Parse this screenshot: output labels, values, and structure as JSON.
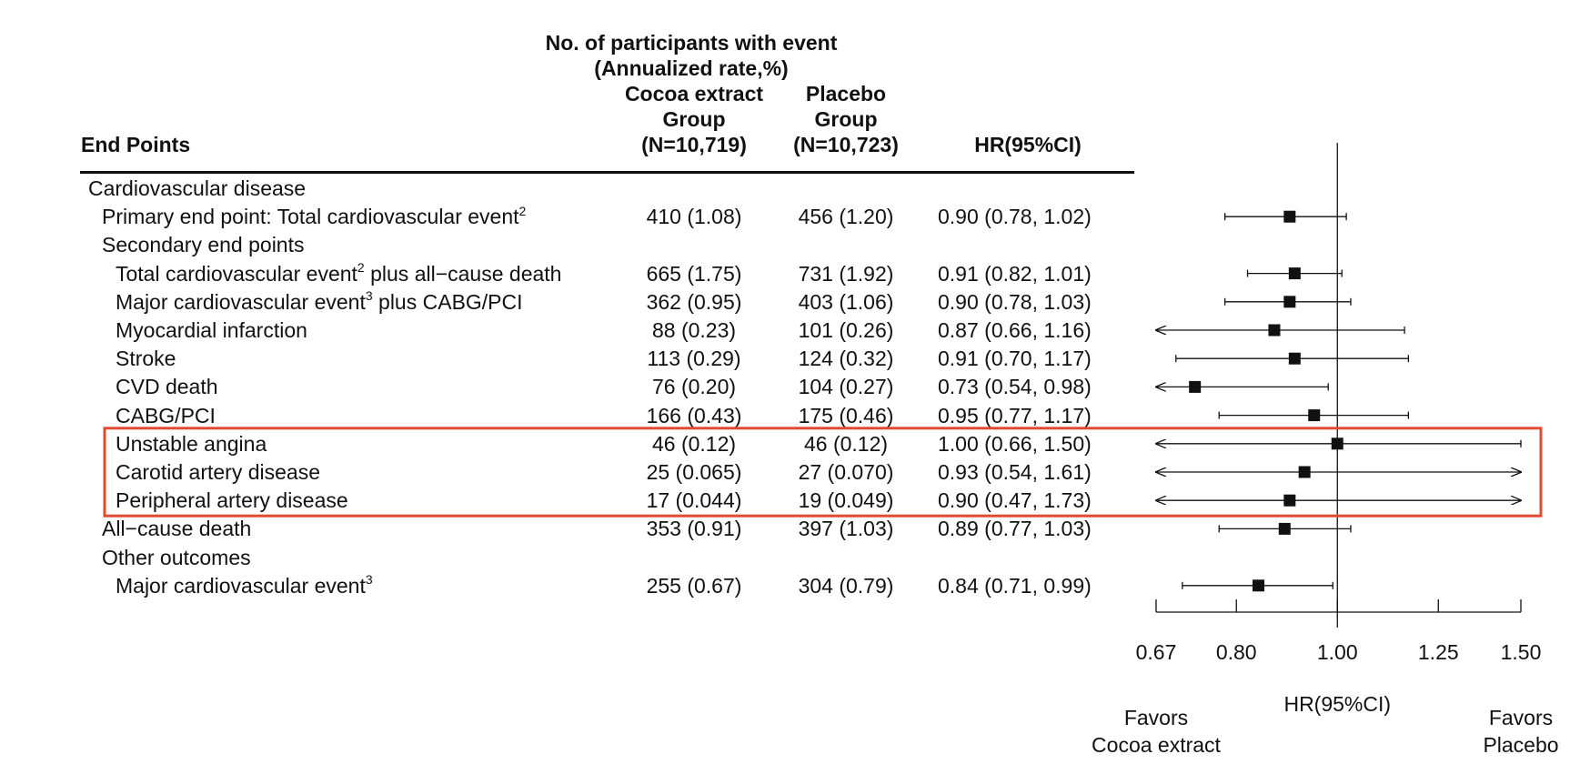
{
  "header": {
    "line1": "No. of participants with event",
    "line2": "(Annualized rate,%)",
    "cocoa_l1": "Cocoa extract",
    "cocoa_l2": "Group",
    "cocoa_l3": "(N=10,719)",
    "placebo_l1": "Placebo",
    "placebo_l2": "Group",
    "placebo_l3": "(N=10,723)",
    "endpoints": "End Points",
    "hr": "HR(95%CI)"
  },
  "rows": [
    {
      "label": "Cardiovascular disease",
      "indent": 0,
      "cocoa": "",
      "placebo": "",
      "hr_text": ""
    },
    {
      "label": "Primary end point:  Total cardiovascular event",
      "sup": "2",
      "indent": 1,
      "cocoa": "410 (1.08)",
      "placebo": "456 (1.20)",
      "hr_text": "0.90 (0.78, 1.02)"
    },
    {
      "label": "Secondary end points",
      "indent": 1,
      "cocoa": "",
      "placebo": "",
      "hr_text": ""
    },
    {
      "label": "Total cardiovascular event",
      "sup": "2",
      "label_tail": " plus all−cause death",
      "indent": 2,
      "cocoa": "665 (1.75)",
      "placebo": "731 (1.92)",
      "hr_text": "0.91 (0.82, 1.01)"
    },
    {
      "label": "Major cardiovascular event",
      "sup": "3",
      "label_tail": " plus CABG/PCI",
      "indent": 2,
      "cocoa": "362 (0.95)",
      "placebo": "403 (1.06)",
      "hr_text": "0.90 (0.78, 1.03)"
    },
    {
      "label": "Myocardial infarction",
      "indent": 2,
      "cocoa": "88 (0.23)",
      "placebo": "101 (0.26)",
      "hr_text": "0.87 (0.66, 1.16)"
    },
    {
      "label": "Stroke",
      "indent": 2,
      "cocoa": "113 (0.29)",
      "placebo": "124 (0.32)",
      "hr_text": "0.91 (0.70, 1.17)"
    },
    {
      "label": "CVD death",
      "indent": 2,
      "cocoa": "76 (0.20)",
      "placebo": "104 (0.27)",
      "hr_text": "0.73 (0.54, 0.98)"
    },
    {
      "label": "CABG/PCI",
      "indent": 2,
      "cocoa": "166 (0.43)",
      "placebo": "175 (0.46)",
      "hr_text": "0.95 (0.77, 1.17)"
    },
    {
      "label": "Unstable angina",
      "indent": 2,
      "cocoa": "46 (0.12)",
      "placebo": "46 (0.12)",
      "hr_text": "1.00 (0.66, 1.50)"
    },
    {
      "label": "Carotid artery disease",
      "indent": 2,
      "cocoa": "25 (0.065)",
      "placebo": "27 (0.070)",
      "hr_text": "0.93 (0.54, 1.61)"
    },
    {
      "label": "Peripheral artery disease",
      "indent": 2,
      "cocoa": "17 (0.044)",
      "placebo": "19 (0.049)",
      "hr_text": "0.90 (0.47, 1.73)"
    },
    {
      "label": "All−cause death",
      "indent": 1,
      "cocoa": "353 (0.91)",
      "placebo": "397 (1.03)",
      "hr_text": "0.89 (0.77, 1.03)"
    },
    {
      "label": "Other outcomes",
      "indent": 1,
      "cocoa": "",
      "placebo": "",
      "hr_text": ""
    },
    {
      "label": "Major cardiovascular event",
      "sup": "3",
      "indent": 2,
      "cocoa": "255 (0.67)",
      "placebo": "304 (0.79)",
      "hr_text": "0.84 (0.71, 0.99)"
    }
  ],
  "chart_data": {
    "type": "forest",
    "xscale": "log",
    "xlim": [
      0.67,
      1.5
    ],
    "reference_line": 1.0,
    "xticks": [
      0.67,
      0.8,
      1.0,
      1.25,
      1.5
    ],
    "xtick_labels": [
      "0.67",
      "0.80",
      "1.00",
      "1.25",
      "1.50"
    ],
    "xlabel": "HR(95%CI)",
    "left_annotation": [
      "Favors",
      "Cocoa extract"
    ],
    "right_annotation": [
      "Favors",
      "Placebo"
    ],
    "points": [
      {
        "row": 1,
        "hr": 0.9,
        "lo": 0.78,
        "hi": 1.02
      },
      {
        "row": 3,
        "hr": 0.91,
        "lo": 0.82,
        "hi": 1.01
      },
      {
        "row": 4,
        "hr": 0.9,
        "lo": 0.78,
        "hi": 1.03
      },
      {
        "row": 5,
        "hr": 0.87,
        "lo": 0.66,
        "hi": 1.16
      },
      {
        "row": 6,
        "hr": 0.91,
        "lo": 0.7,
        "hi": 1.17
      },
      {
        "row": 7,
        "hr": 0.73,
        "lo": 0.54,
        "hi": 0.98
      },
      {
        "row": 8,
        "hr": 0.95,
        "lo": 0.77,
        "hi": 1.17
      },
      {
        "row": 9,
        "hr": 1.0,
        "lo": 0.66,
        "hi": 1.5
      },
      {
        "row": 10,
        "hr": 0.93,
        "lo": 0.54,
        "hi": 1.61
      },
      {
        "row": 11,
        "hr": 0.9,
        "lo": 0.47,
        "hi": 1.73
      },
      {
        "row": 12,
        "hr": 0.89,
        "lo": 0.77,
        "hi": 1.03
      },
      {
        "row": 14,
        "hr": 0.84,
        "lo": 0.71,
        "hi": 0.99
      }
    ],
    "highlight_rows": [
      9,
      10,
      11
    ],
    "highlight_color": "#e04a2f"
  }
}
